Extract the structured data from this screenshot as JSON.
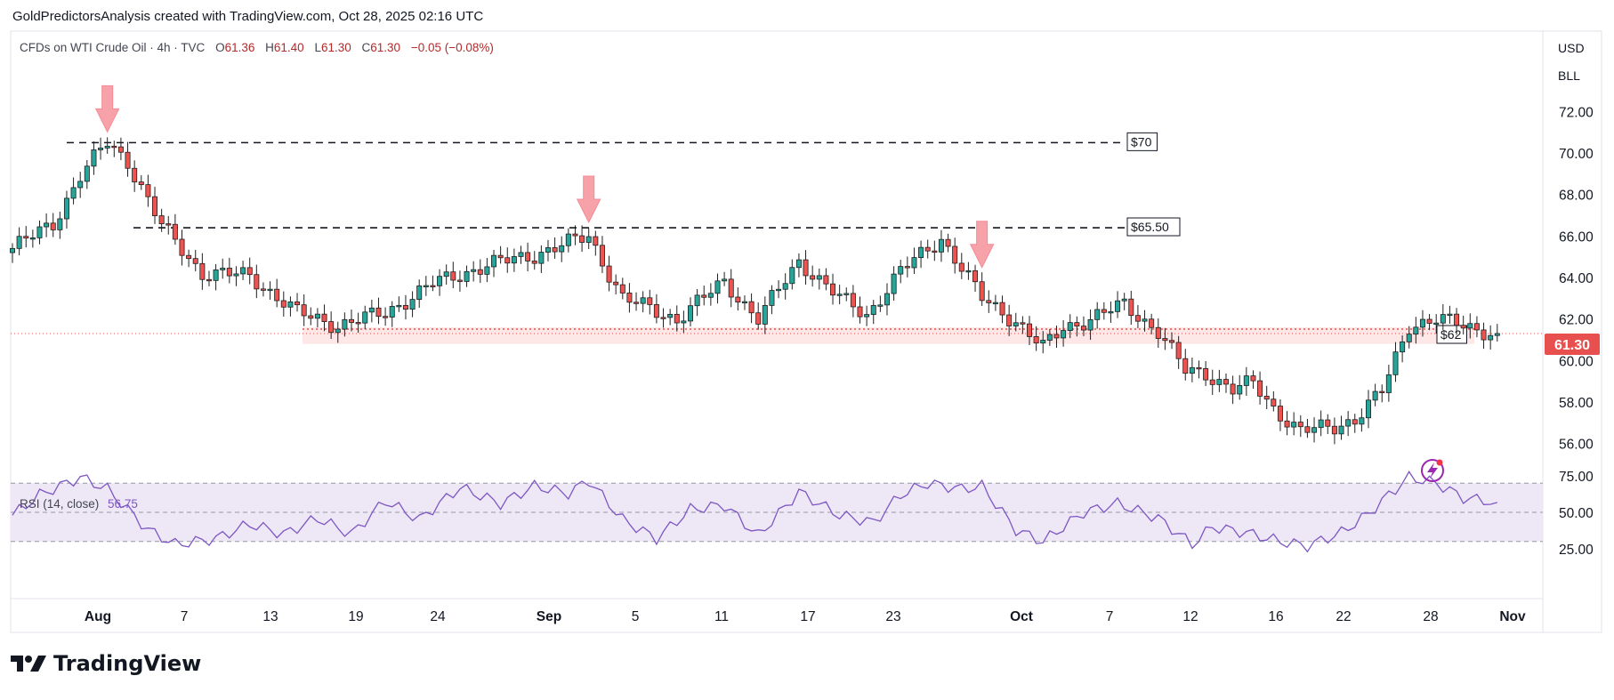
{
  "header": {
    "text": "GoldPredictorsAnalysis created with TradingView.com, Oct 28, 2025 02:16 UTC"
  },
  "legend": {
    "symbol": "CFDs on WTI Crude Oil · 4h · TVC",
    "o_label": "O",
    "o": "61.36",
    "h_label": "H",
    "h": "61.40",
    "l_label": "L",
    "l": "61.30",
    "c_label": "C",
    "c": "61.30",
    "change": "−0.05 (−0.08%)"
  },
  "price_axis": {
    "currency": "USD",
    "unit": "BLL",
    "ticks": [
      "72.00",
      "70.00",
      "68.00",
      "66.00",
      "64.00",
      "62.00",
      "60.00",
      "58.00",
      "56.00"
    ],
    "current_price": "61.30"
  },
  "rsi": {
    "label": "RSI (14, close)",
    "value": "56.75",
    "ticks": [
      "75.00",
      "50.00",
      "25.00"
    ]
  },
  "annotations": {
    "level_70": "$70",
    "level_65_50": "$65.50",
    "level_62": "$62"
  },
  "brand": {
    "name": "TradingView"
  },
  "colors": {
    "up": "#26a69a",
    "down": "#ef5350",
    "rsi_line": "#7e57c2",
    "rsi_band": "#ede7f6",
    "support_zone": "#fde4e4",
    "arrow": "#f7a1a8",
    "price_tag": "#e8504f",
    "candle": "#1f1f1f"
  },
  "chart_data": {
    "type": "candlestick",
    "title": "",
    "x_ticks": [
      "Aug",
      "7",
      "13",
      "19",
      "24",
      "Sep",
      "5",
      "11",
      "17",
      "23",
      "Oct",
      "7",
      "12",
      "16",
      "22",
      "28",
      "Nov"
    ],
    "ylim": [
      55.0,
      73.5
    ],
    "price_path": [
      [
        0,
        65.4
      ],
      [
        6,
        66.6
      ],
      [
        10,
        68.9
      ],
      [
        14,
        70.5
      ],
      [
        17,
        69.6
      ],
      [
        22,
        66.5
      ],
      [
        28,
        64.2
      ],
      [
        35,
        64.1
      ],
      [
        42,
        62.3
      ],
      [
        48,
        61.7
      ],
      [
        55,
        62.3
      ],
      [
        62,
        63.7
      ],
      [
        70,
        64.6
      ],
      [
        77,
        65.1
      ],
      [
        85,
        66.0
      ],
      [
        90,
        63.0
      ],
      [
        98,
        62.0
      ],
      [
        105,
        63.8
      ],
      [
        110,
        62.0
      ],
      [
        116,
        64.8
      ],
      [
        122,
        63.0
      ],
      [
        126,
        62.2
      ],
      [
        131,
        64.3
      ],
      [
        137,
        65.9
      ],
      [
        143,
        63.0
      ],
      [
        148,
        61.9
      ],
      [
        152,
        60.6
      ],
      [
        155,
        61.6
      ],
      [
        159,
        62.0
      ],
      [
        164,
        62.7
      ],
      [
        169,
        61.4
      ],
      [
        173,
        59.5
      ],
      [
        176,
        59.4
      ],
      [
        180,
        58.6
      ],
      [
        183,
        58.9
      ],
      [
        186,
        57.7
      ],
      [
        190,
        56.6
      ],
      [
        195,
        56.8
      ],
      [
        198,
        57.2
      ],
      [
        202,
        58.5
      ],
      [
        206,
        61.7
      ],
      [
        210,
        62.0
      ],
      [
        215,
        61.6
      ],
      [
        219,
        61.3
      ]
    ],
    "horizontal_levels": [
      {
        "label": "$70",
        "y": 70.5
      },
      {
        "label": "$65.50",
        "y": 66.4
      }
    ],
    "support_zone": {
      "label": "$62",
      "y_low": 60.8,
      "y_high": 61.6
    },
    "peak_arrows": [
      14,
      85,
      143
    ],
    "rsi_values": [
      [
        0,
        48
      ],
      [
        4,
        62
      ],
      [
        8,
        70
      ],
      [
        10,
        74
      ],
      [
        14,
        66
      ],
      [
        20,
        38
      ],
      [
        24,
        28
      ],
      [
        30,
        32
      ],
      [
        35,
        42
      ],
      [
        40,
        35
      ],
      [
        45,
        46
      ],
      [
        50,
        35
      ],
      [
        55,
        58
      ],
      [
        60,
        45
      ],
      [
        66,
        67
      ],
      [
        72,
        56
      ],
      [
        77,
        68
      ],
      [
        82,
        63
      ],
      [
        85,
        72
      ],
      [
        90,
        45
      ],
      [
        95,
        32
      ],
      [
        100,
        52
      ],
      [
        105,
        55
      ],
      [
        110,
        34
      ],
      [
        116,
        64
      ],
      [
        122,
        48
      ],
      [
        127,
        43
      ],
      [
        131,
        62
      ],
      [
        135,
        70
      ],
      [
        140,
        66
      ],
      [
        143,
        68
      ],
      [
        148,
        38
      ],
      [
        152,
        30
      ],
      [
        158,
        50
      ],
      [
        163,
        56
      ],
      [
        169,
        46
      ],
      [
        174,
        28
      ],
      [
        177,
        40
      ],
      [
        182,
        36
      ],
      [
        187,
        30
      ],
      [
        191,
        27
      ],
      [
        196,
        36
      ],
      [
        200,
        49
      ],
      [
        203,
        62
      ],
      [
        206,
        74
      ],
      [
        210,
        70
      ],
      [
        214,
        60
      ],
      [
        219,
        56.75
      ]
    ]
  }
}
